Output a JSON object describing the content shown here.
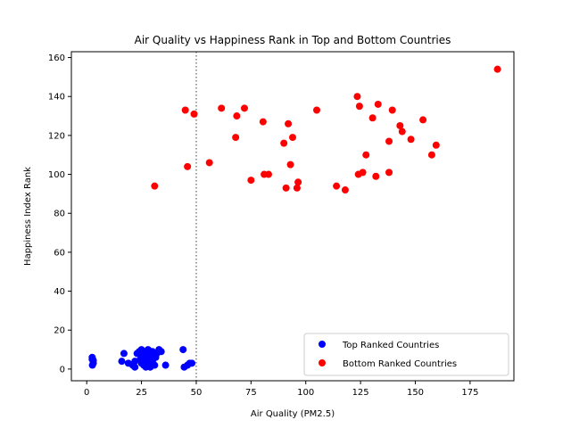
{
  "chart_data": {
    "type": "scatter",
    "title": "Air Quality vs Happiness Rank in Top and Bottom Countries",
    "xlabel": "Air Quality (PM2.5)",
    "ylabel": "Happiness Index Rank",
    "xlim": [
      -7,
      195
    ],
    "ylim": [
      -6,
      163
    ],
    "xticks": [
      0,
      25,
      50,
      75,
      100,
      125,
      150,
      175
    ],
    "yticks": [
      0,
      20,
      40,
      60,
      80,
      100,
      120,
      140,
      160
    ],
    "grid": false,
    "legend_position": "lower-right",
    "reference_line": {
      "x": 50,
      "style": "dotted",
      "color": "#808080"
    },
    "series": [
      {
        "name": "Top Ranked Countries",
        "color": "#0000ff",
        "points": [
          [
            2.5,
            6
          ],
          [
            2.5,
            5
          ],
          [
            2.6,
            2
          ],
          [
            3,
            3
          ],
          [
            3,
            4.5
          ],
          [
            16,
            4
          ],
          [
            17,
            8
          ],
          [
            19,
            3
          ],
          [
            21,
            2
          ],
          [
            22,
            1
          ],
          [
            22,
            4
          ],
          [
            23,
            8
          ],
          [
            24,
            9
          ],
          [
            24.5,
            5
          ],
          [
            25,
            10
          ],
          [
            25,
            3
          ],
          [
            25.5,
            7
          ],
          [
            26,
            2
          ],
          [
            26.5,
            9
          ],
          [
            27,
            1
          ],
          [
            27,
            6
          ],
          [
            27.5,
            4
          ],
          [
            28,
            10
          ],
          [
            28,
            3
          ],
          [
            28.5,
            8
          ],
          [
            29,
            1
          ],
          [
            29,
            5
          ],
          [
            29.5,
            7
          ],
          [
            30,
            4
          ],
          [
            30,
            9
          ],
          [
            31,
            2
          ],
          [
            31.5,
            6
          ],
          [
            32,
            8
          ],
          [
            33,
            10
          ],
          [
            34,
            9
          ],
          [
            36,
            2
          ],
          [
            44,
            10
          ],
          [
            44.5,
            1
          ],
          [
            46,
            2
          ],
          [
            47,
            3
          ],
          [
            48,
            3
          ]
        ]
      },
      {
        "name": "Bottom Ranked Countries",
        "color": "#ff0000",
        "points": [
          [
            31,
            94
          ],
          [
            45,
            133
          ],
          [
            46,
            104
          ],
          [
            49,
            131
          ],
          [
            56,
            106
          ],
          [
            61.5,
            134
          ],
          [
            68,
            119
          ],
          [
            68.5,
            130
          ],
          [
            72,
            134
          ],
          [
            75,
            97
          ],
          [
            80.5,
            127
          ],
          [
            81,
            100
          ],
          [
            83,
            100
          ],
          [
            90,
            116
          ],
          [
            91,
            93
          ],
          [
            92,
            126
          ],
          [
            93,
            105
          ],
          [
            94,
            119
          ],
          [
            96,
            93
          ],
          [
            96.5,
            96
          ],
          [
            105,
            133
          ],
          [
            114,
            94
          ],
          [
            118,
            92
          ],
          [
            123.5,
            140
          ],
          [
            124,
            100
          ],
          [
            124.5,
            135
          ],
          [
            126,
            101
          ],
          [
            127.5,
            110
          ],
          [
            130.5,
            129
          ],
          [
            132,
            99
          ],
          [
            133,
            136
          ],
          [
            138,
            117
          ],
          [
            138,
            101
          ],
          [
            139.5,
            133
          ],
          [
            143,
            125
          ],
          [
            144,
            122
          ],
          [
            148,
            118
          ],
          [
            153.5,
            128
          ],
          [
            157.5,
            110
          ],
          [
            159.5,
            115
          ],
          [
            187.5,
            154
          ]
        ]
      }
    ]
  }
}
